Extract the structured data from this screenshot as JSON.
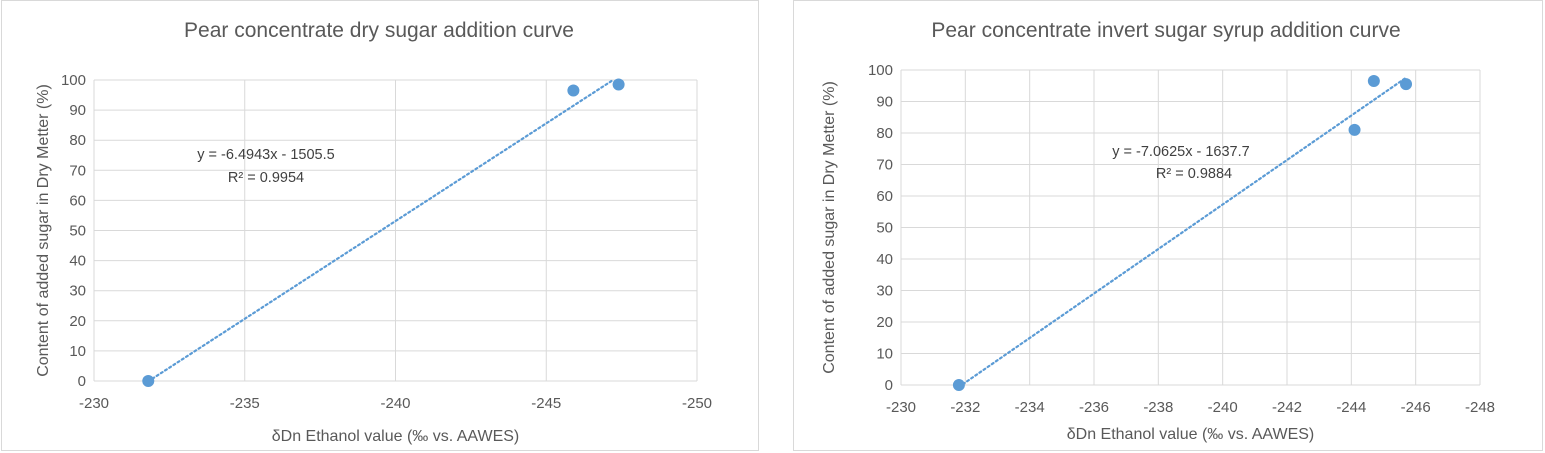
{
  "chart_data": [
    {
      "type": "scatter",
      "title": "Pear concentrate dry sugar addition curve",
      "xlabel": "δDn Ethanol value (‰ vs. AAWES)",
      "ylabel": "Content of added sugar in Dry Metter (%)",
      "xlim": [
        -230,
        -250
      ],
      "xticks": [
        -230,
        -235,
        -240,
        -245,
        -250
      ],
      "ylim": [
        0,
        100
      ],
      "yticks": [
        0,
        10,
        20,
        30,
        40,
        50,
        60,
        70,
        80,
        90,
        100
      ],
      "grid": true,
      "marker_color": "#5b9bd5",
      "points": [
        {
          "x": -231.8,
          "y": 0
        },
        {
          "x": -245.9,
          "y": 96.5
        },
        {
          "x": -247.4,
          "y": 98.5
        }
      ],
      "trendline": {
        "type": "linear",
        "slope": -6.4943,
        "intercept": -1505.5,
        "style": "dotted"
      },
      "equation": "y = -6.4943x - 1505.5",
      "r_squared": "R² = 0.9954"
    },
    {
      "type": "scatter",
      "title": "Pear concentrate invert sugar syrup addition curve",
      "xlabel": "δDn Ethanol value (‰ vs. AAWES)",
      "ylabel": "Content of added sugar in Dry Metter (%)",
      "xlim": [
        -230,
        -248
      ],
      "xticks": [
        -230,
        -232,
        -234,
        -236,
        -238,
        -240,
        -242,
        -244,
        -246,
        -248
      ],
      "ylim": [
        0,
        100
      ],
      "yticks": [
        0,
        10,
        20,
        30,
        40,
        50,
        60,
        70,
        80,
        90,
        100
      ],
      "grid": true,
      "marker_color": "#5b9bd5",
      "points": [
        {
          "x": -231.8,
          "y": 0
        },
        {
          "x": -244.1,
          "y": 81
        },
        {
          "x": -244.7,
          "y": 96.5
        },
        {
          "x": -245.7,
          "y": 95.5
        }
      ],
      "trendline": {
        "type": "linear",
        "slope": -7.0625,
        "intercept": -1637.7,
        "style": "dotted"
      },
      "equation": "y = -7.0625x - 1637.7",
      "r_squared": "R² = 0.9884"
    }
  ]
}
